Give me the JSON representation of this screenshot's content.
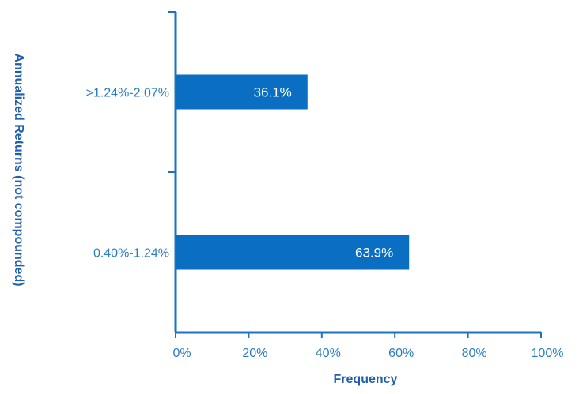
{
  "colors": {
    "bar": "#0A6FC2",
    "axis": "#1E73BE",
    "tick_text": "#2B7CC3",
    "bar_label": "#ffffff",
    "axis_title": "#1F5FAE",
    "background": "#ffffff"
  },
  "chart_data": {
    "type": "bar",
    "orientation": "horizontal",
    "categories": [
      ">1.24%-2.07%",
      "0.40%-1.24%"
    ],
    "values": [
      36.1,
      63.9
    ],
    "value_labels": [
      "36.1%",
      "63.9%"
    ],
    "xlabel": "Frequency",
    "ylabel": "Annualized Returns (not compounded)",
    "xlim": [
      0,
      100
    ],
    "xticks": [
      0,
      20,
      40,
      60,
      80,
      100
    ],
    "xtick_labels": [
      "0%",
      "20%",
      "40%",
      "60%",
      "80%",
      "100%"
    ],
    "grid": false,
    "legend": "none"
  }
}
